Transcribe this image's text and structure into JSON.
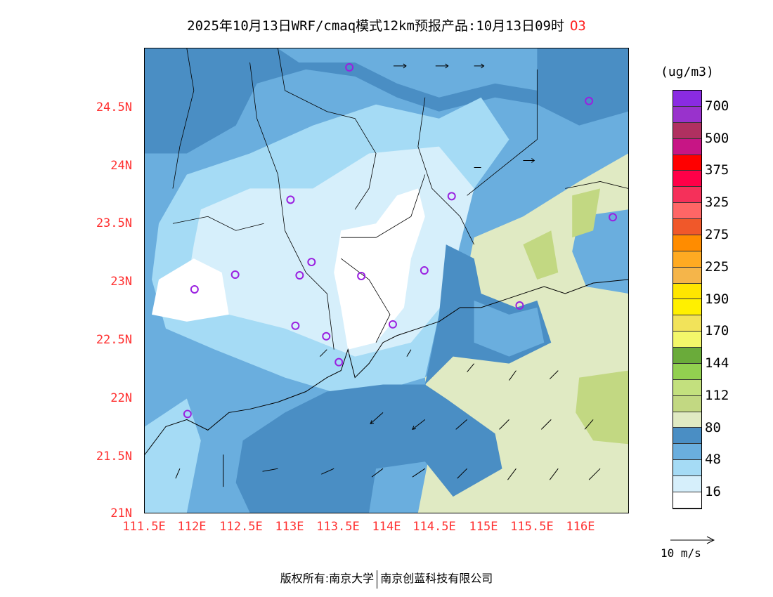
{
  "title": {
    "text": "2025年10月13日WRF/cmaq模式12km预报产品:10月13日09时",
    "species": "O3"
  },
  "axes": {
    "lat_labels": [
      "24.5N",
      "24N",
      "23.5N",
      "23N",
      "22.5N",
      "22N",
      "21.5N",
      "21N"
    ],
    "lon_labels": [
      "111.5E",
      "112E",
      "112.5E",
      "113E",
      "113.5E",
      "114E",
      "114.5E",
      "115E",
      "115.5E",
      "116E"
    ]
  },
  "legend": {
    "unit": "(ug/m3)",
    "colors": [
      "#8a2be2",
      "#9932cc",
      "#b03060",
      "#c71585",
      "#ff0000",
      "#ff0048",
      "#f5305a",
      "#ff6666",
      "#f0582a",
      "#ff8c00",
      "#ffaa22",
      "#f5b54a",
      "#ffe600",
      "#fff000",
      "#f2e35a",
      "#f3f76a",
      "#6aab3a",
      "#92d050",
      "#c3e07e",
      "#c2d882",
      "#e0eac3",
      "#4a8ec4",
      "#6aaede",
      "#a5dbf5",
      "#d6effb",
      "#ffffff"
    ],
    "labels": [
      "700",
      "500",
      "375",
      "325",
      "275",
      "225",
      "190",
      "170",
      "144",
      "112",
      "80",
      "48",
      "16"
    ],
    "vector_label": "10 m/s"
  },
  "footer": {
    "left": "版权所有:南京大学",
    "right": "南京创蓝科技有限公司"
  }
}
